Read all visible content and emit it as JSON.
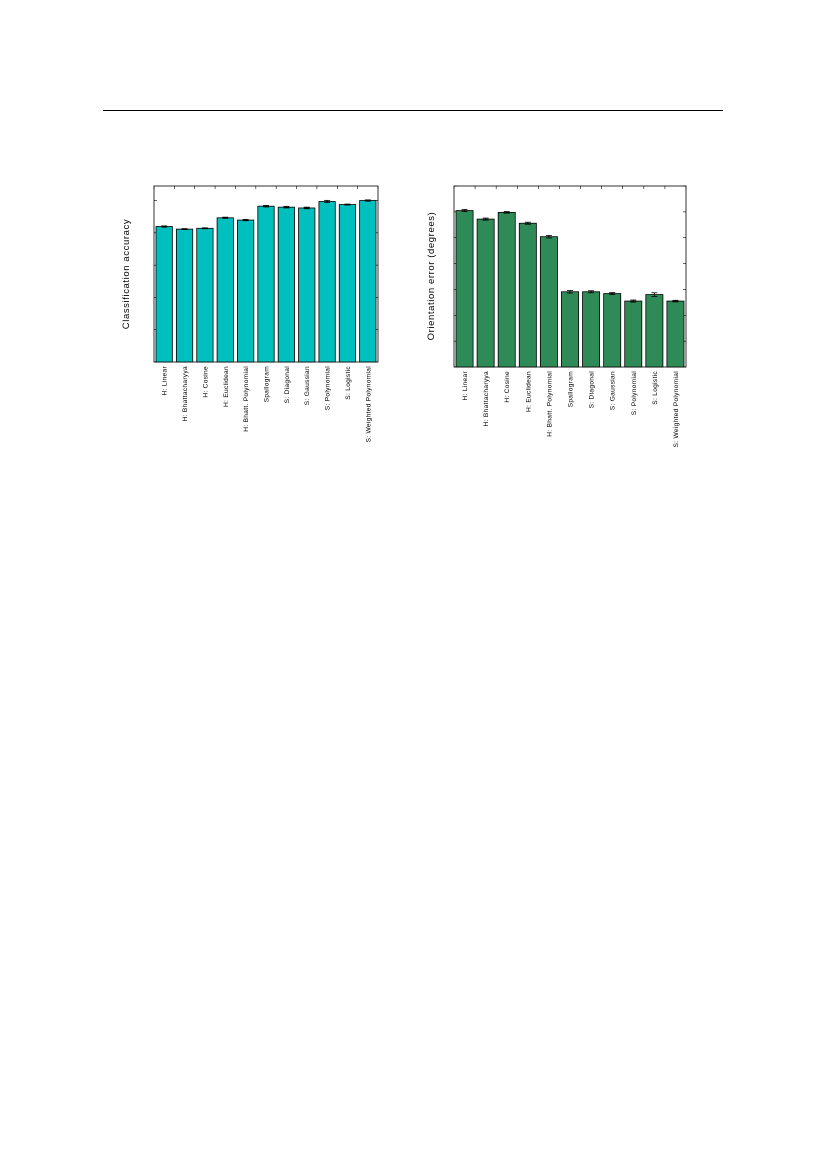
{
  "chart_data": [
    {
      "type": "bar",
      "ylabel": "Classification accuracy",
      "xlabel": "",
      "categories": [
        "H: Linear",
        "H: Bhattacharyya",
        "H: Cosine",
        "H: Euclidean",
        "H: Bhatt. Polynomial",
        "Spallogram",
        "S: Diagonal",
        "S: Gaussian",
        "S: Polynomial",
        "S: Logistic",
        "S: Weighted Polynomial"
      ],
      "series": [
        {
          "values": [
            0.839,
            0.823,
            0.828,
            0.893,
            0.879,
            0.965,
            0.959,
            0.954,
            0.994,
            0.975,
            1.0
          ],
          "errors": [
            0.004,
            0.003,
            0.003,
            0.004,
            0.004,
            0.005,
            0.005,
            0.005,
            0.007,
            0.003,
            0.004
          ]
        }
      ],
      "ylim": [
        0,
        1.09
      ],
      "yticks": [
        0,
        0.2,
        0.4,
        0.6,
        0.8,
        1.0
      ],
      "tick_labels_shown": false,
      "grid": false,
      "bar_color": "#00BFBF"
    },
    {
      "type": "bar",
      "ylabel": "Orientation error (degrees)",
      "xlabel": "",
      "categories": [
        "H: Linear",
        "H: Bhattacharyya",
        "H: Cosine",
        "H: Euclidean",
        "H: Bhatt. Polynomial",
        "Spallogram",
        "S: Diagonal",
        "S: Gaussian",
        "S: Polynomial",
        "S: Logistic",
        "S: Weighted Polynomial"
      ],
      "series": [
        {
          "values": [
            6.05,
            5.72,
            5.98,
            5.56,
            5.04,
            2.91,
            2.91,
            2.84,
            2.55,
            2.8,
            2.55
          ],
          "errors": [
            0.04,
            0.04,
            0.03,
            0.04,
            0.05,
            0.05,
            0.04,
            0.04,
            0.04,
            0.07,
            0.03
          ]
        }
      ],
      "ylim": [
        0,
        7
      ],
      "yticks": [
        0,
        1,
        2,
        3,
        4,
        5,
        6,
        7
      ],
      "tick_labels_shown": false,
      "grid": false,
      "bar_color": "#2E8B57"
    }
  ]
}
